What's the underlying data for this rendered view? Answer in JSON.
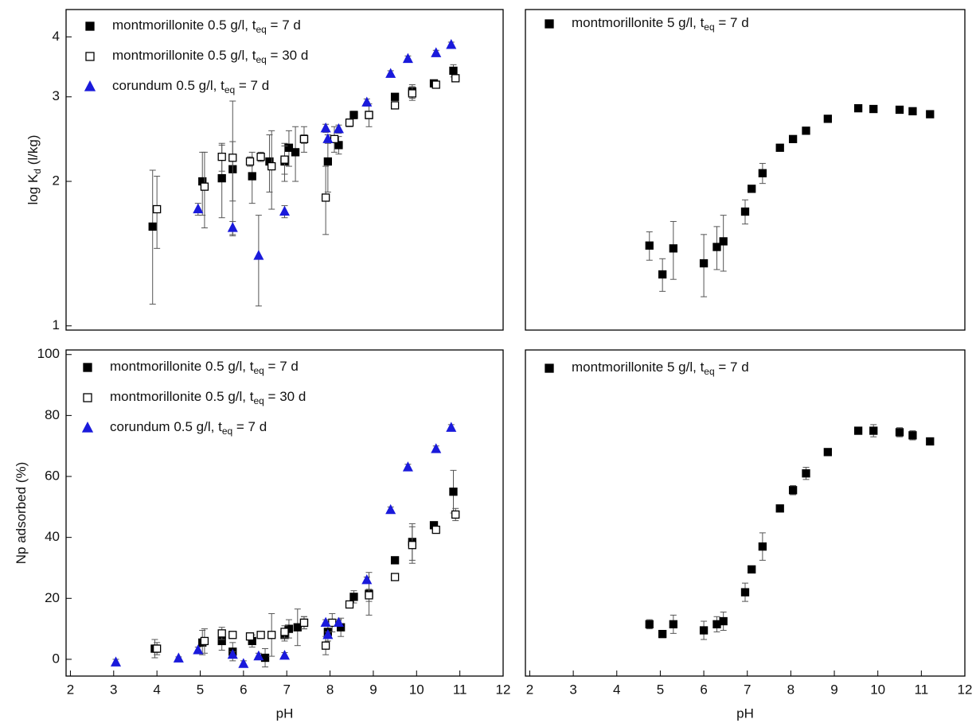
{
  "chart_data": [
    {
      "type": "scatter",
      "ylabel": [
        "log K",
        "d",
        " (l/kg)"
      ],
      "log_y": true,
      "xlim": [
        1.9,
        12
      ],
      "ylim": [
        0.98,
        4.56
      ],
      "yticks": [
        1,
        2,
        3,
        4
      ],
      "series": [
        {
          "name": [
            "montmorillonite 0.5 g/l, t",
            "eq",
            " = 7 d"
          ],
          "color": "#000000",
          "marker": "square",
          "filled": true,
          "x": [
            3.9,
            5.05,
            5.5,
            5.75,
            6.2,
            6.6,
            6.95,
            7.05,
            7.2,
            7.4,
            7.95,
            8.2,
            8.55,
            8.9,
            9.5,
            9.9,
            10.4,
            10.85
          ],
          "values": [
            1.61,
            2.0,
            2.03,
            2.12,
            2.05,
            2.2,
            2.2,
            2.35,
            2.3,
            2.45,
            2.2,
            2.38,
            2.75,
            2.75,
            3.0,
            3.08,
            3.2,
            3.4
          ],
          "errors": [
            0.5,
            0.3,
            0.35,
            0.3,
            0.25,
            0.3,
            0.2,
            0.2,
            0.3,
            0.15,
            0.3,
            0.1,
            0.05,
            0.15,
            0.03,
            0.1,
            0.03,
            0.1
          ]
        },
        {
          "name": [
            "montmorillonite 0.5 g/l, t",
            "eq",
            " = 30 d"
          ],
          "color": "#000000",
          "marker": "square",
          "filled": false,
          "x": [
            4.0,
            5.1,
            5.5,
            5.75,
            6.15,
            6.4,
            6.65,
            6.95,
            7.4,
            7.9,
            8.1,
            8.45,
            8.9,
            9.5,
            9.9,
            10.45,
            10.9
          ],
          "values": [
            1.75,
            1.95,
            2.25,
            2.24,
            2.2,
            2.25,
            2.15,
            2.22,
            2.45,
            1.85,
            2.45,
            2.65,
            2.75,
            2.88,
            3.05,
            3.18,
            3.28
          ],
          "errors": [
            0.3,
            0.35,
            0.15,
            0.7,
            0.05,
            0.05,
            0.4,
            0.15,
            0.05,
            0.3,
            0.15,
            0.05,
            0.05,
            0.03,
            0.1,
            0.03,
            0.05
          ]
        },
        {
          "name": [
            "corundum 0.5 g/l, t",
            "eq",
            " = 7 d"
          ],
          "color": "#1a1adb",
          "marker": "triangle",
          "filled": true,
          "x": [
            4.95,
            5.75,
            6.35,
            6.95,
            7.9,
            7.95,
            8.2,
            8.85,
            9.4,
            9.8,
            10.45,
            10.8
          ],
          "values": [
            1.75,
            1.6,
            1.4,
            1.73,
            2.58,
            2.45,
            2.57,
            2.92,
            3.35,
            3.6,
            3.7,
            3.85
          ],
          "errors": [
            0.05,
            0.05,
            0.3,
            0.05,
            0.05,
            0.05,
            0.05,
            0.05,
            0.05,
            0.05,
            0.05,
            0.05
          ]
        }
      ]
    },
    {
      "type": "scatter",
      "log_y": true,
      "xlim": [
        1.9,
        12
      ],
      "ylim": [
        0.98,
        4.56
      ],
      "series": [
        {
          "name": [
            "montmorillonite 5 g/l, t",
            "eq",
            " = 7 d"
          ],
          "color": "#000000",
          "marker": "square",
          "filled": true,
          "x": [
            4.75,
            5.05,
            5.3,
            6.0,
            6.3,
            6.45,
            6.95,
            7.1,
            7.35,
            7.75,
            8.05,
            8.35,
            8.85,
            9.55,
            9.9,
            10.5,
            10.8,
            11.2
          ],
          "values": [
            1.47,
            1.28,
            1.45,
            1.35,
            1.46,
            1.5,
            1.73,
            1.93,
            2.08,
            2.35,
            2.45,
            2.55,
            2.7,
            2.84,
            2.83,
            2.82,
            2.8,
            2.76
          ],
          "errors": [
            0.1,
            0.1,
            0.2,
            0.2,
            0.15,
            0.2,
            0.1,
            0.03,
            0.1,
            0.02,
            0.02,
            0.02,
            0.02,
            0.02,
            0.02,
            0.02,
            0.02,
            0.02
          ]
        }
      ]
    },
    {
      "type": "scatter",
      "ylabel": [
        "Np adsorbed (%)"
      ],
      "xlabel": "pH",
      "log_y": false,
      "xlim": [
        1.9,
        12
      ],
      "ylim": [
        -5.5,
        101.5
      ],
      "xticks": [
        2,
        3,
        4,
        5,
        6,
        7,
        8,
        9,
        10,
        11,
        12
      ],
      "yticks": [
        0,
        20,
        40,
        60,
        80,
        100
      ],
      "series": [
        {
          "name": [
            "montmorillonite 0.5 g/l, t",
            "eq",
            " = 7 d"
          ],
          "color": "#000000",
          "marker": "square",
          "filled": true,
          "x": [
            3.95,
            5.05,
            5.5,
            5.75,
            6.2,
            6.5,
            6.95,
            7.05,
            7.25,
            7.4,
            7.95,
            8.25,
            8.55,
            8.9,
            9.5,
            9.9,
            10.4,
            10.85
          ],
          "values": [
            3.5,
            5.5,
            6,
            2.5,
            6,
            0.5,
            8,
            10,
            10.5,
            12,
            9,
            10.5,
            20.5,
            21.5,
            32.5,
            38.5,
            44,
            55
          ],
          "errors": [
            3,
            4,
            3,
            3,
            2,
            3,
            2,
            3,
            6,
            2,
            3,
            3,
            2,
            7,
            1,
            6,
            1,
            7
          ]
        },
        {
          "name": [
            "montmorillonite 0.5 g/l, t",
            "eq",
            " = 30 d"
          ],
          "color": "#000000",
          "marker": "square",
          "filled": false,
          "x": [
            4.0,
            5.1,
            5.5,
            5.75,
            6.15,
            6.4,
            6.65,
            6.95,
            7.4,
            7.9,
            8.05,
            8.45,
            8.9,
            9.5,
            9.9,
            10.45,
            10.9
          ],
          "values": [
            3.5,
            6,
            8.5,
            8,
            7.5,
            8,
            8,
            9,
            12,
            4.5,
            12,
            18,
            21,
            27,
            37.5,
            42.5,
            47.5
          ],
          "errors": [
            2,
            4,
            2,
            1,
            1,
            1,
            7,
            2,
            2,
            3,
            3,
            1,
            2,
            1,
            6,
            1,
            2
          ]
        },
        {
          "name": [
            "corundum 0.5 g/l, t",
            "eq",
            " = 7 d"
          ],
          "color": "#1a1adb",
          "marker": "triangle",
          "filled": true,
          "x": [
            3.05,
            4.5,
            4.95,
            5.75,
            6.0,
            6.35,
            6.95,
            7.9,
            7.95,
            8.2,
            8.85,
            9.4,
            9.8,
            10.45,
            10.8
          ],
          "values": [
            -1,
            0.3,
            3,
            1.5,
            -1.5,
            1,
            1.2,
            12,
            8,
            12,
            26,
            49,
            63,
            69,
            76
          ],
          "errors": [
            1,
            0.5,
            1,
            1,
            1,
            1,
            1,
            1,
            1,
            1,
            1,
            1,
            1,
            1,
            1
          ]
        }
      ]
    },
    {
      "type": "scatter",
      "xlabel": "pH",
      "log_y": false,
      "xlim": [
        1.9,
        12
      ],
      "ylim": [
        -5.5,
        101.5
      ],
      "xticks": [
        2,
        3,
        4,
        5,
        6,
        7,
        8,
        9,
        10,
        11,
        12
      ],
      "series": [
        {
          "name": [
            "montmorillonite 5 g/l, t",
            "eq",
            " = 7 d"
          ],
          "color": "#000000",
          "marker": "square",
          "filled": true,
          "x": [
            4.75,
            5.05,
            5.3,
            6.0,
            6.3,
            6.45,
            6.95,
            7.1,
            7.35,
            7.75,
            8.05,
            8.35,
            8.85,
            9.55,
            9.9,
            10.5,
            10.8,
            11.2
          ],
          "values": [
            11.5,
            8.3,
            11.5,
            9.5,
            11.5,
            12.5,
            22,
            29.5,
            37,
            49.5,
            55.5,
            61,
            68,
            75,
            75,
            74.5,
            73.5,
            71.5
          ],
          "errors": [
            1.5,
            1.2,
            3,
            3,
            2.5,
            3,
            3,
            1,
            4.5,
            0.5,
            1.5,
            2,
            1,
            0.5,
            2,
            1.5,
            1.5,
            0.5
          ]
        }
      ]
    }
  ]
}
